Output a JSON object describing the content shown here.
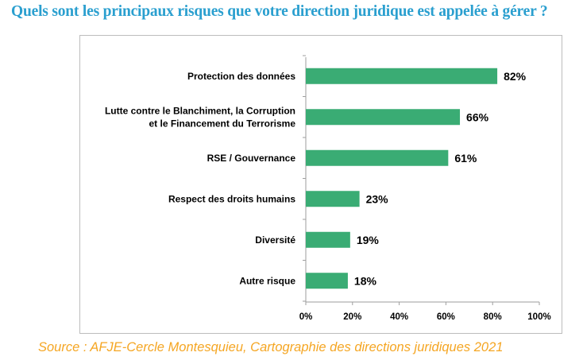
{
  "title": "Quels sont les principaux risques que votre direction juridique est appelée à gérer ?",
  "source": "Source : AFJE-Cercle Montesquieu, Cartographie des directions juridiques 2021",
  "chart_data": {
    "type": "bar",
    "orientation": "horizontal",
    "categories": [
      [
        "Protection des données"
      ],
      [
        "Lutte contre le Blanchiment, la Corruption",
        "et le Financement du Terrorisme"
      ],
      [
        "RSE / Gouvernance"
      ],
      [
        "Respect des droits humains"
      ],
      [
        "Diversité"
      ],
      [
        "Autre risque"
      ]
    ],
    "values": [
      82,
      66,
      61,
      23,
      19,
      18
    ],
    "value_labels": [
      "82%",
      "66%",
      "61%",
      "23%",
      "19%",
      "18%"
    ],
    "xlim": [
      0,
      100
    ],
    "x_ticks": [
      "0%",
      "20%",
      "40%",
      "60%",
      "80%",
      "100%"
    ],
    "bar_color": "#3aac74",
    "axis_color": "#9e9e9e",
    "grid": false
  }
}
